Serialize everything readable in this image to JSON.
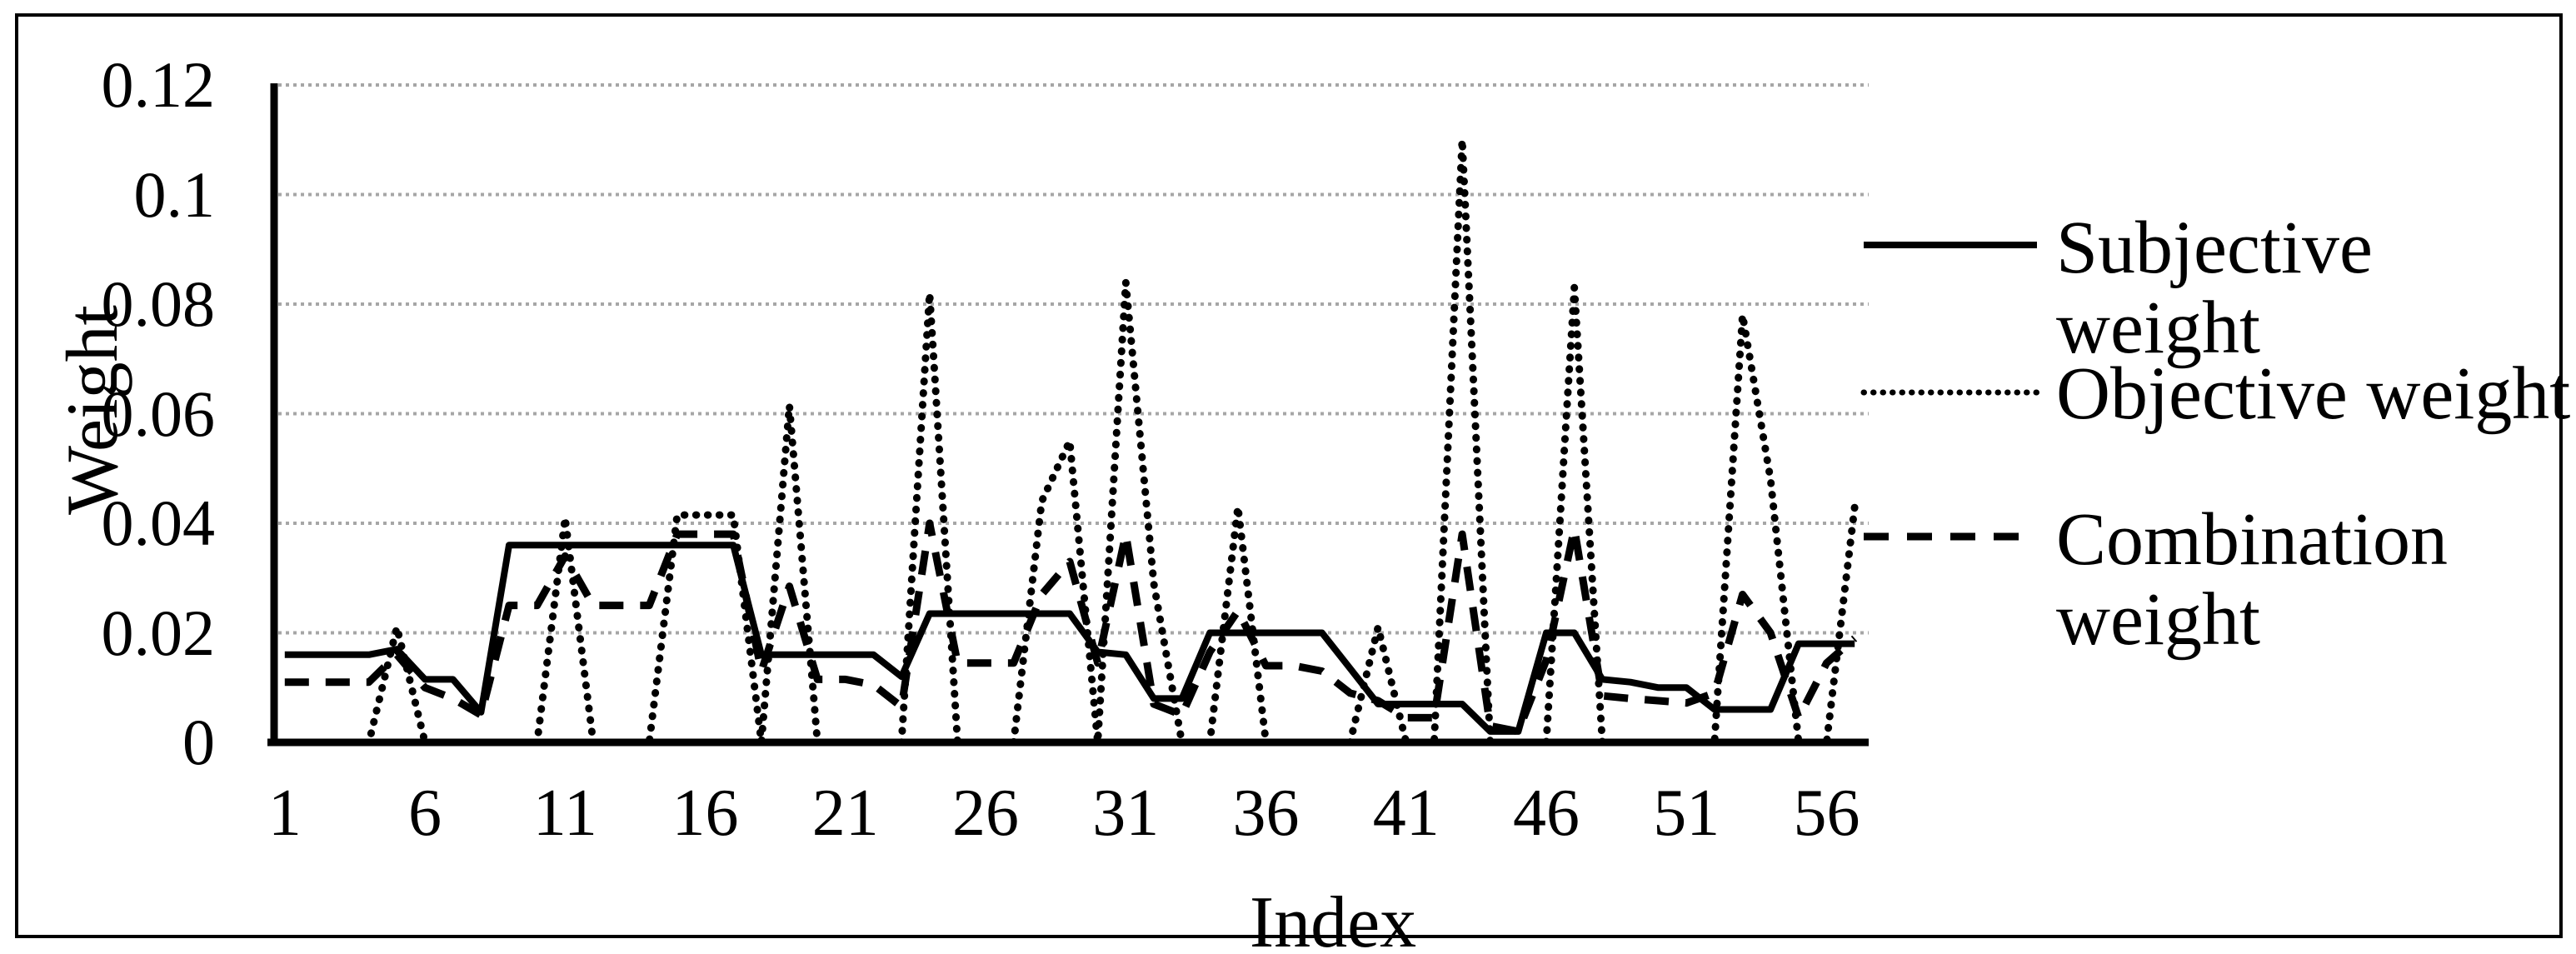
{
  "figure": {
    "background": "#ffffff",
    "border_color": "#000000",
    "series_color": "#000000",
    "gridline_color": "#a6a6a6"
  },
  "chart_data": {
    "type": "line",
    "title": "",
    "xlabel": "Index",
    "ylabel": "Weight",
    "ylim": [
      0,
      0.12
    ],
    "grid": "horizontal-dotted",
    "legend_position": "right",
    "x_ticks": [
      1,
      6,
      11,
      16,
      21,
      26,
      31,
      36,
      41,
      46,
      51,
      56
    ],
    "y_ticks": [
      {
        "value": 0.12,
        "label": "0.12"
      },
      {
        "value": 0.1,
        "label": "0.1"
      },
      {
        "value": 0.08,
        "label": "0.08"
      },
      {
        "value": 0.06,
        "label": "0.06"
      },
      {
        "value": 0.04,
        "label": "0.04"
      },
      {
        "value": 0.02,
        "label": "0.02"
      },
      {
        "value": 0,
        "label": "0"
      }
    ],
    "x": [
      1,
      2,
      3,
      4,
      5,
      6,
      7,
      8,
      9,
      10,
      11,
      12,
      13,
      14,
      15,
      16,
      17,
      18,
      19,
      20,
      21,
      22,
      23,
      24,
      25,
      26,
      27,
      28,
      29,
      30,
      31,
      32,
      33,
      34,
      35,
      36,
      37,
      38,
      39,
      40,
      41,
      42,
      43,
      44,
      45,
      46,
      47,
      48,
      49,
      50,
      51,
      52,
      53,
      54,
      55,
      56,
      57
    ],
    "series": [
      {
        "name": "Subjective weight",
        "style": "solid",
        "values": [
          0.016,
          0.016,
          0.016,
          0.016,
          0.017,
          0.0115,
          0.0115,
          0.0055,
          0.036,
          0.036,
          0.036,
          0.036,
          0.036,
          0.036,
          0.036,
          0.036,
          0.036,
          0.016,
          0.016,
          0.016,
          0.016,
          0.016,
          0.012,
          0.0235,
          0.0235,
          0.0235,
          0.0235,
          0.0235,
          0.0235,
          0.0165,
          0.016,
          0.008,
          0.008,
          0.02,
          0.02,
          0.02,
          0.02,
          0.02,
          0.0135,
          0.007,
          0.007,
          0.007,
          0.007,
          0.002,
          0.002,
          0.02,
          0.02,
          0.0115,
          0.011,
          0.01,
          0.01,
          0.006,
          0.006,
          0.006,
          0.018,
          0.018,
          0.018
        ]
      },
      {
        "name": "Objective weight",
        "style": "dotted",
        "values": [
          0,
          0,
          0,
          0,
          0.021,
          0,
          0,
          0,
          0,
          0,
          0.041,
          0,
          0,
          0,
          0.0415,
          0.0415,
          0.0415,
          0,
          0.0615,
          0,
          0,
          0,
          0,
          0.082,
          0,
          0,
          0,
          0.044,
          0.055,
          0,
          0.084,
          0.029,
          0,
          0,
          0.043,
          0,
          0,
          0,
          0,
          0.021,
          0,
          0,
          0.11,
          0,
          0,
          0,
          0.083,
          0,
          0,
          0,
          0,
          0,
          0.078,
          0.048,
          0,
          0,
          0.043
        ]
      },
      {
        "name": "Combination weight",
        "style": "dashed",
        "values": [
          0.011,
          0.011,
          0.011,
          0.011,
          0.016,
          0.01,
          0.008,
          0.005,
          0.025,
          0.025,
          0.034,
          0.025,
          0.025,
          0.025,
          0.038,
          0.038,
          0.038,
          0.013,
          0.0285,
          0.0115,
          0.0115,
          0.0105,
          0.0065,
          0.04,
          0.0145,
          0.0145,
          0.0145,
          0.027,
          0.033,
          0.0145,
          0.038,
          0.007,
          0.005,
          0.0165,
          0.024,
          0.014,
          0.014,
          0.013,
          0.009,
          0.0076,
          0.0045,
          0.0045,
          0.038,
          0.003,
          0.002,
          0.015,
          0.039,
          0.0085,
          0.008,
          0.0076,
          0.0072,
          0.009,
          0.027,
          0.02,
          0.0045,
          0.0145,
          0.019
        ]
      }
    ]
  },
  "legend": {
    "items": [
      {
        "label": "Subjective\nweight",
        "style": "solid"
      },
      {
        "label": "Objective weight",
        "style": "dotted"
      },
      {
        "label": "Combination\nweight",
        "style": "dashed"
      }
    ]
  }
}
